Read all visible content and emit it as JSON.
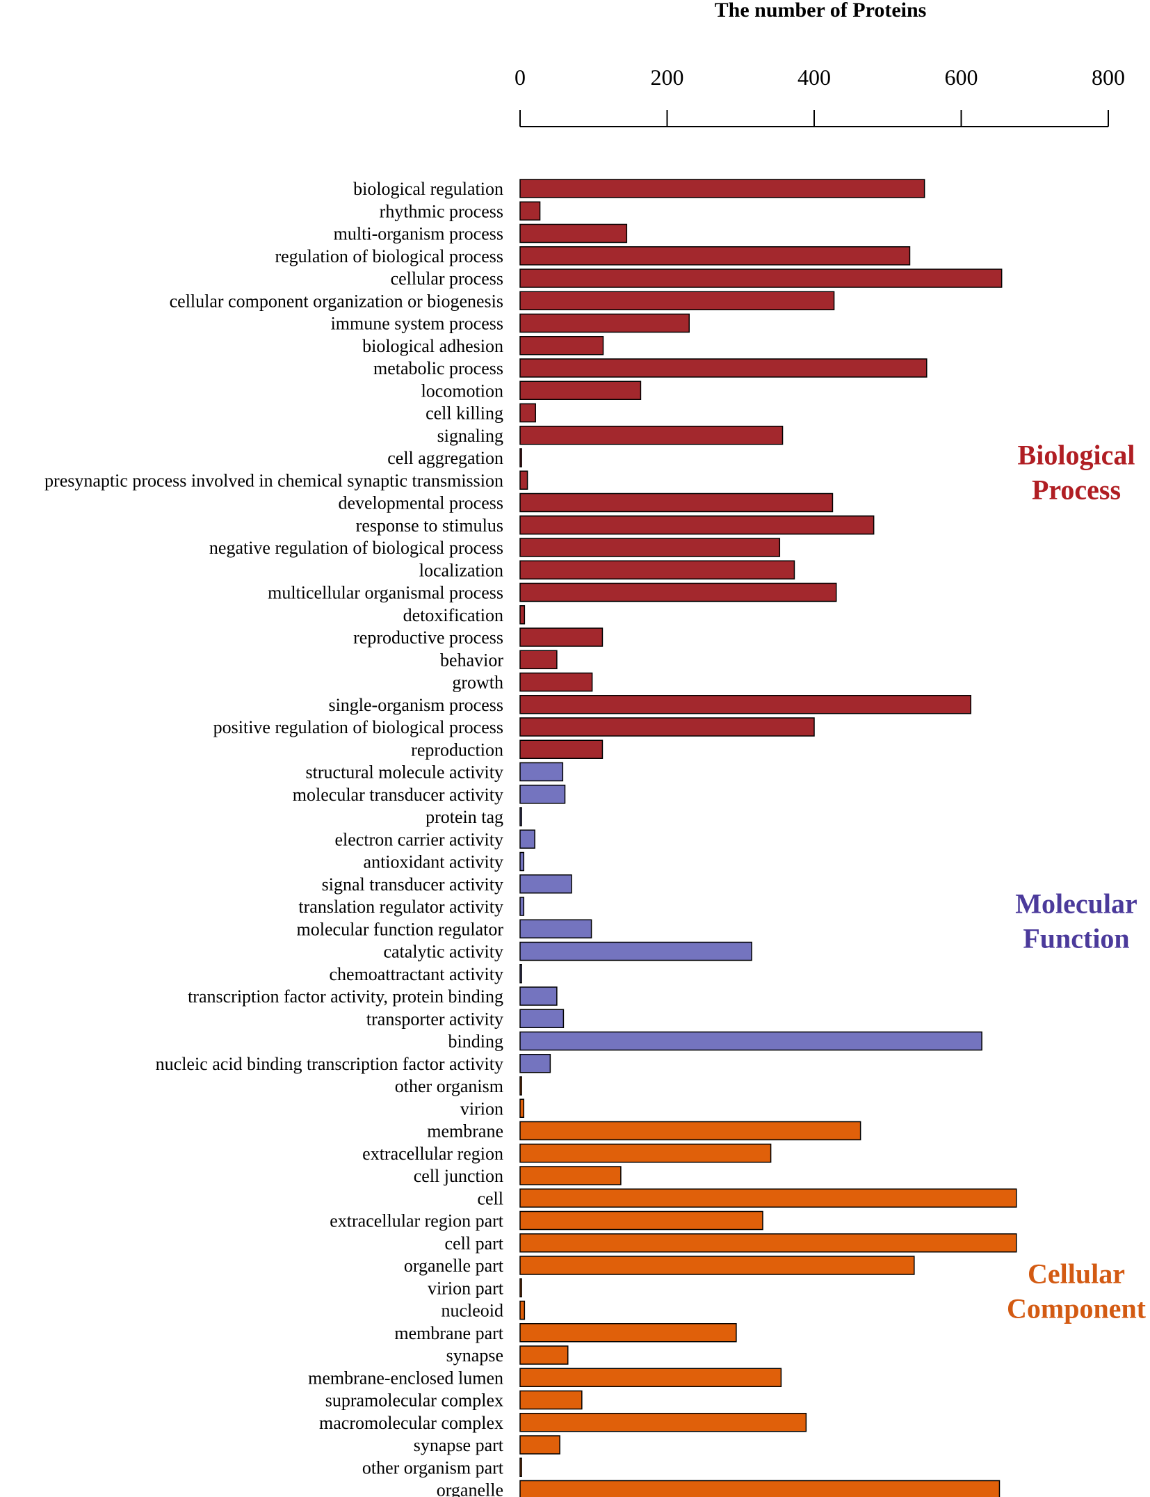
{
  "chart_data": {
    "type": "bar",
    "orientation": "horizontal",
    "title": "The number of Proteins",
    "xlim": [
      0,
      800
    ],
    "ticks": [
      0,
      200,
      400,
      600,
      800
    ],
    "groups": [
      {
        "name": "Biological Process",
        "line1": "Biological",
        "line2": "Process",
        "color": "#a3282d",
        "label_color": "#b01e23",
        "items": [
          {
            "label": "biological regulation",
            "value": 550
          },
          {
            "label": "rhythmic process",
            "value": 27
          },
          {
            "label": "multi-organism process",
            "value": 145
          },
          {
            "label": "regulation of biological process",
            "value": 530
          },
          {
            "label": "cellular process",
            "value": 655
          },
          {
            "label": "cellular component organization or biogenesis",
            "value": 427
          },
          {
            "label": "immune system process",
            "value": 230
          },
          {
            "label": "biological adhesion",
            "value": 113
          },
          {
            "label": "metabolic process",
            "value": 553
          },
          {
            "label": "locomotion",
            "value": 164
          },
          {
            "label": "cell killing",
            "value": 21
          },
          {
            "label": "signaling",
            "value": 357
          },
          {
            "label": "cell aggregation",
            "value": 2
          },
          {
            "label": "presynaptic process involved in chemical synaptic transmission",
            "value": 10
          },
          {
            "label": "developmental process",
            "value": 425
          },
          {
            "label": "response to stimulus",
            "value": 481
          },
          {
            "label": "negative regulation of biological process",
            "value": 353
          },
          {
            "label": "localization",
            "value": 373
          },
          {
            "label": "multicellular organismal process",
            "value": 430
          },
          {
            "label": "detoxification",
            "value": 6
          },
          {
            "label": "reproductive process",
            "value": 112
          },
          {
            "label": "behavior",
            "value": 50
          },
          {
            "label": "growth",
            "value": 98
          },
          {
            "label": "single-organism process",
            "value": 613
          },
          {
            "label": "positive regulation of biological process",
            "value": 400
          },
          {
            "label": "reproduction",
            "value": 112
          }
        ]
      },
      {
        "name": "Molecular Function",
        "line1": "Molecular",
        "line2": "Function",
        "color": "#7474bf",
        "label_color": "#4b3a9b",
        "items": [
          {
            "label": "structural molecule activity",
            "value": 58
          },
          {
            "label": "molecular transducer activity",
            "value": 61
          },
          {
            "label": "protein tag",
            "value": 2
          },
          {
            "label": "electron carrier activity",
            "value": 20
          },
          {
            "label": "antioxidant activity",
            "value": 5
          },
          {
            "label": "signal transducer activity",
            "value": 70
          },
          {
            "label": "translation regulator activity",
            "value": 5
          },
          {
            "label": "molecular function regulator",
            "value": 97
          },
          {
            "label": "catalytic activity",
            "value": 315
          },
          {
            "label": "chemoattractant activity",
            "value": 2
          },
          {
            "label": "transcription factor activity, protein binding",
            "value": 50
          },
          {
            "label": "transporter activity",
            "value": 59
          },
          {
            "label": "binding",
            "value": 628
          },
          {
            "label": "nucleic acid binding transcription factor activity",
            "value": 41
          }
        ]
      },
      {
        "name": "Cellular Component",
        "line1": "Cellular",
        "line2": "Component",
        "color": "#e0600a",
        "label_color": "#d35a12",
        "items": [
          {
            "label": "other organism",
            "value": 2
          },
          {
            "label": "virion",
            "value": 5
          },
          {
            "label": "membrane",
            "value": 463
          },
          {
            "label": "extracellular region",
            "value": 341
          },
          {
            "label": "cell junction",
            "value": 137
          },
          {
            "label": "cell",
            "value": 675
          },
          {
            "label": "extracellular region part",
            "value": 330
          },
          {
            "label": "cell part",
            "value": 675
          },
          {
            "label": "organelle part",
            "value": 536
          },
          {
            "label": "virion part",
            "value": 2
          },
          {
            "label": "nucleoid",
            "value": 6
          },
          {
            "label": "membrane part",
            "value": 294
          },
          {
            "label": "synapse",
            "value": 65
          },
          {
            "label": "membrane-enclosed lumen",
            "value": 355
          },
          {
            "label": "supramolecular complex",
            "value": 84
          },
          {
            "label": "macromolecular complex",
            "value": 389
          },
          {
            "label": "synapse part",
            "value": 54
          },
          {
            "label": "other organism part",
            "value": 2
          },
          {
            "label": "organelle",
            "value": 652
          }
        ]
      }
    ]
  }
}
